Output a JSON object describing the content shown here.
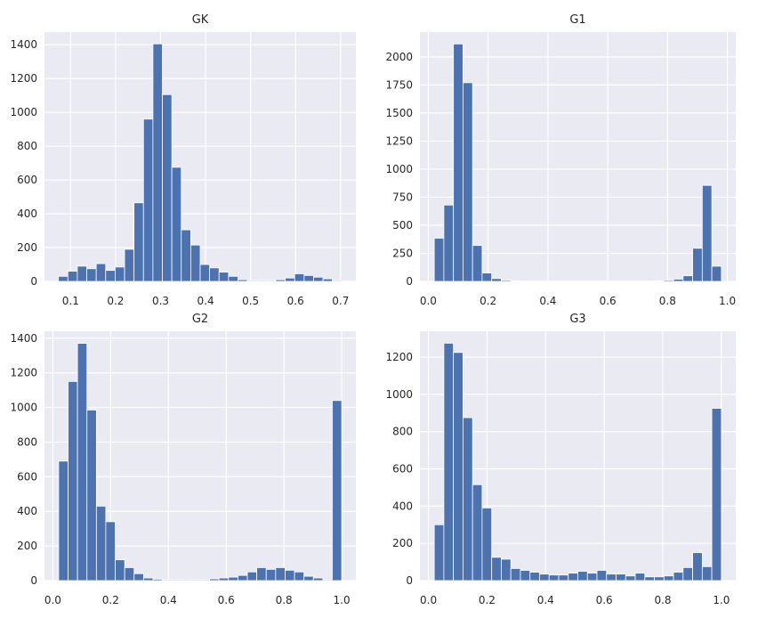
{
  "chart_data": [
    {
      "type": "bar",
      "title": "GK",
      "bin_edges": [
        0.073,
        0.094,
        0.115,
        0.136,
        0.157,
        0.178,
        0.199,
        0.22,
        0.241,
        0.262,
        0.283,
        0.304,
        0.325,
        0.346,
        0.367,
        0.388,
        0.409,
        0.43,
        0.451,
        0.472,
        0.493,
        0.514,
        0.535,
        0.556,
        0.577,
        0.598,
        0.619,
        0.64,
        0.661,
        0.682,
        0.703
      ],
      "values": [
        30,
        60,
        90,
        75,
        105,
        65,
        85,
        190,
        465,
        960,
        1405,
        1105,
        675,
        305,
        215,
        100,
        80,
        55,
        30,
        10,
        5,
        5,
        5,
        10,
        20,
        45,
        35,
        25,
        15,
        5
      ],
      "xlim": [
        0.042,
        0.734
      ],
      "ylim": [
        0,
        1475
      ],
      "xticks": [
        0.1,
        0.2,
        0.3,
        0.4,
        0.5,
        0.6,
        0.7
      ],
      "xticklabels": [
        "0.1",
        "0.2",
        "0.3",
        "0.4",
        "0.5",
        "0.6",
        "0.7"
      ],
      "yticks": [
        0,
        200,
        400,
        600,
        800,
        1000,
        1200,
        1400
      ],
      "yticklabels": [
        "0",
        "200",
        "400",
        "600",
        "800",
        "1000",
        "1200",
        "1400"
      ],
      "grid": true
    },
    {
      "type": "bar",
      "title": "G1",
      "bin_edges": [
        0.02,
        0.052,
        0.084,
        0.116,
        0.148,
        0.18,
        0.212,
        0.244,
        0.276,
        0.308,
        0.34,
        0.372,
        0.404,
        0.436,
        0.468,
        0.5,
        0.532,
        0.564,
        0.596,
        0.628,
        0.66,
        0.692,
        0.724,
        0.756,
        0.788,
        0.82,
        0.852,
        0.884,
        0.916,
        0.948,
        0.98
      ],
      "values": [
        385,
        680,
        2115,
        1770,
        320,
        75,
        25,
        10,
        5,
        3,
        2,
        2,
        2,
        2,
        2,
        2,
        2,
        2,
        2,
        2,
        2,
        2,
        3,
        5,
        10,
        20,
        50,
        295,
        855,
        135
      ],
      "xlim": [
        -0.028,
        1.028
      ],
      "ylim": [
        0,
        2221
      ],
      "xticks": [
        0.0,
        0.2,
        0.4,
        0.6,
        0.8,
        1.0
      ],
      "xticklabels": [
        "0.0",
        "0.2",
        "0.4",
        "0.6",
        "0.8",
        "1.0"
      ],
      "yticks": [
        0,
        250,
        500,
        750,
        1000,
        1250,
        1500,
        1750,
        2000
      ],
      "yticklabels": [
        "0",
        "250",
        "500",
        "750",
        "1000",
        "1250",
        "1500",
        "1750",
        "2000"
      ],
      "grid": true
    },
    {
      "type": "bar",
      "title": "G2",
      "bin_edges": [
        0.02,
        0.0527,
        0.0853,
        0.118,
        0.1507,
        0.1833,
        0.216,
        0.2487,
        0.2813,
        0.314,
        0.3467,
        0.3793,
        0.412,
        0.4447,
        0.4773,
        0.51,
        0.5427,
        0.5753,
        0.608,
        0.6407,
        0.6733,
        0.706,
        0.7387,
        0.7713,
        0.804,
        0.8367,
        0.8693,
        0.902,
        0.9347,
        0.9673,
        1.0
      ],
      "values": [
        690,
        1150,
        1370,
        985,
        430,
        340,
        120,
        75,
        40,
        15,
        8,
        5,
        5,
        5,
        5,
        5,
        10,
        15,
        20,
        30,
        50,
        75,
        65,
        75,
        60,
        50,
        25,
        15,
        5,
        1040
      ],
      "xlim": [
        -0.029,
        1.049
      ],
      "ylim": [
        0,
        1440
      ],
      "xticks": [
        0.0,
        0.2,
        0.4,
        0.6,
        0.8,
        1.0
      ],
      "xticklabels": [
        "0.0",
        "0.2",
        "0.4",
        "0.6",
        "0.8",
        "1.0"
      ],
      "yticks": [
        0,
        200,
        400,
        600,
        800,
        1000,
        1200,
        1400
      ],
      "yticklabels": [
        "0",
        "200",
        "400",
        "600",
        "800",
        "1000",
        "1200",
        "1400"
      ],
      "grid": true
    },
    {
      "type": "bar",
      "title": "G3",
      "bin_edges": [
        0.02,
        0.0527,
        0.0853,
        0.118,
        0.1507,
        0.1833,
        0.216,
        0.2487,
        0.2813,
        0.314,
        0.3467,
        0.3793,
        0.412,
        0.4447,
        0.4773,
        0.51,
        0.5427,
        0.5753,
        0.608,
        0.6407,
        0.6733,
        0.706,
        0.7387,
        0.7713,
        0.804,
        0.8367,
        0.8693,
        0.902,
        0.9347,
        0.9673,
        1.0
      ],
      "values": [
        300,
        1275,
        1225,
        875,
        515,
        390,
        125,
        115,
        65,
        55,
        45,
        35,
        30,
        30,
        40,
        50,
        40,
        55,
        35,
        35,
        25,
        40,
        20,
        20,
        25,
        45,
        70,
        150,
        75,
        925
      ],
      "xlim": [
        -0.029,
        1.049
      ],
      "ylim": [
        0,
        1339
      ],
      "xticks": [
        0.0,
        0.2,
        0.4,
        0.6,
        0.8,
        1.0
      ],
      "xticklabels": [
        "0.0",
        "0.2",
        "0.4",
        "0.6",
        "0.8",
        "1.0"
      ],
      "yticks": [
        0,
        200,
        400,
        600,
        800,
        1000,
        1200
      ],
      "yticklabels": [
        "0",
        "200",
        "400",
        "600",
        "800",
        "1000",
        "1200"
      ],
      "grid": true
    }
  ],
  "colors": {
    "bar": "#4c72b0",
    "panel_background": "#eaeaf2",
    "grid": "#ffffff",
    "text": "#262626"
  }
}
